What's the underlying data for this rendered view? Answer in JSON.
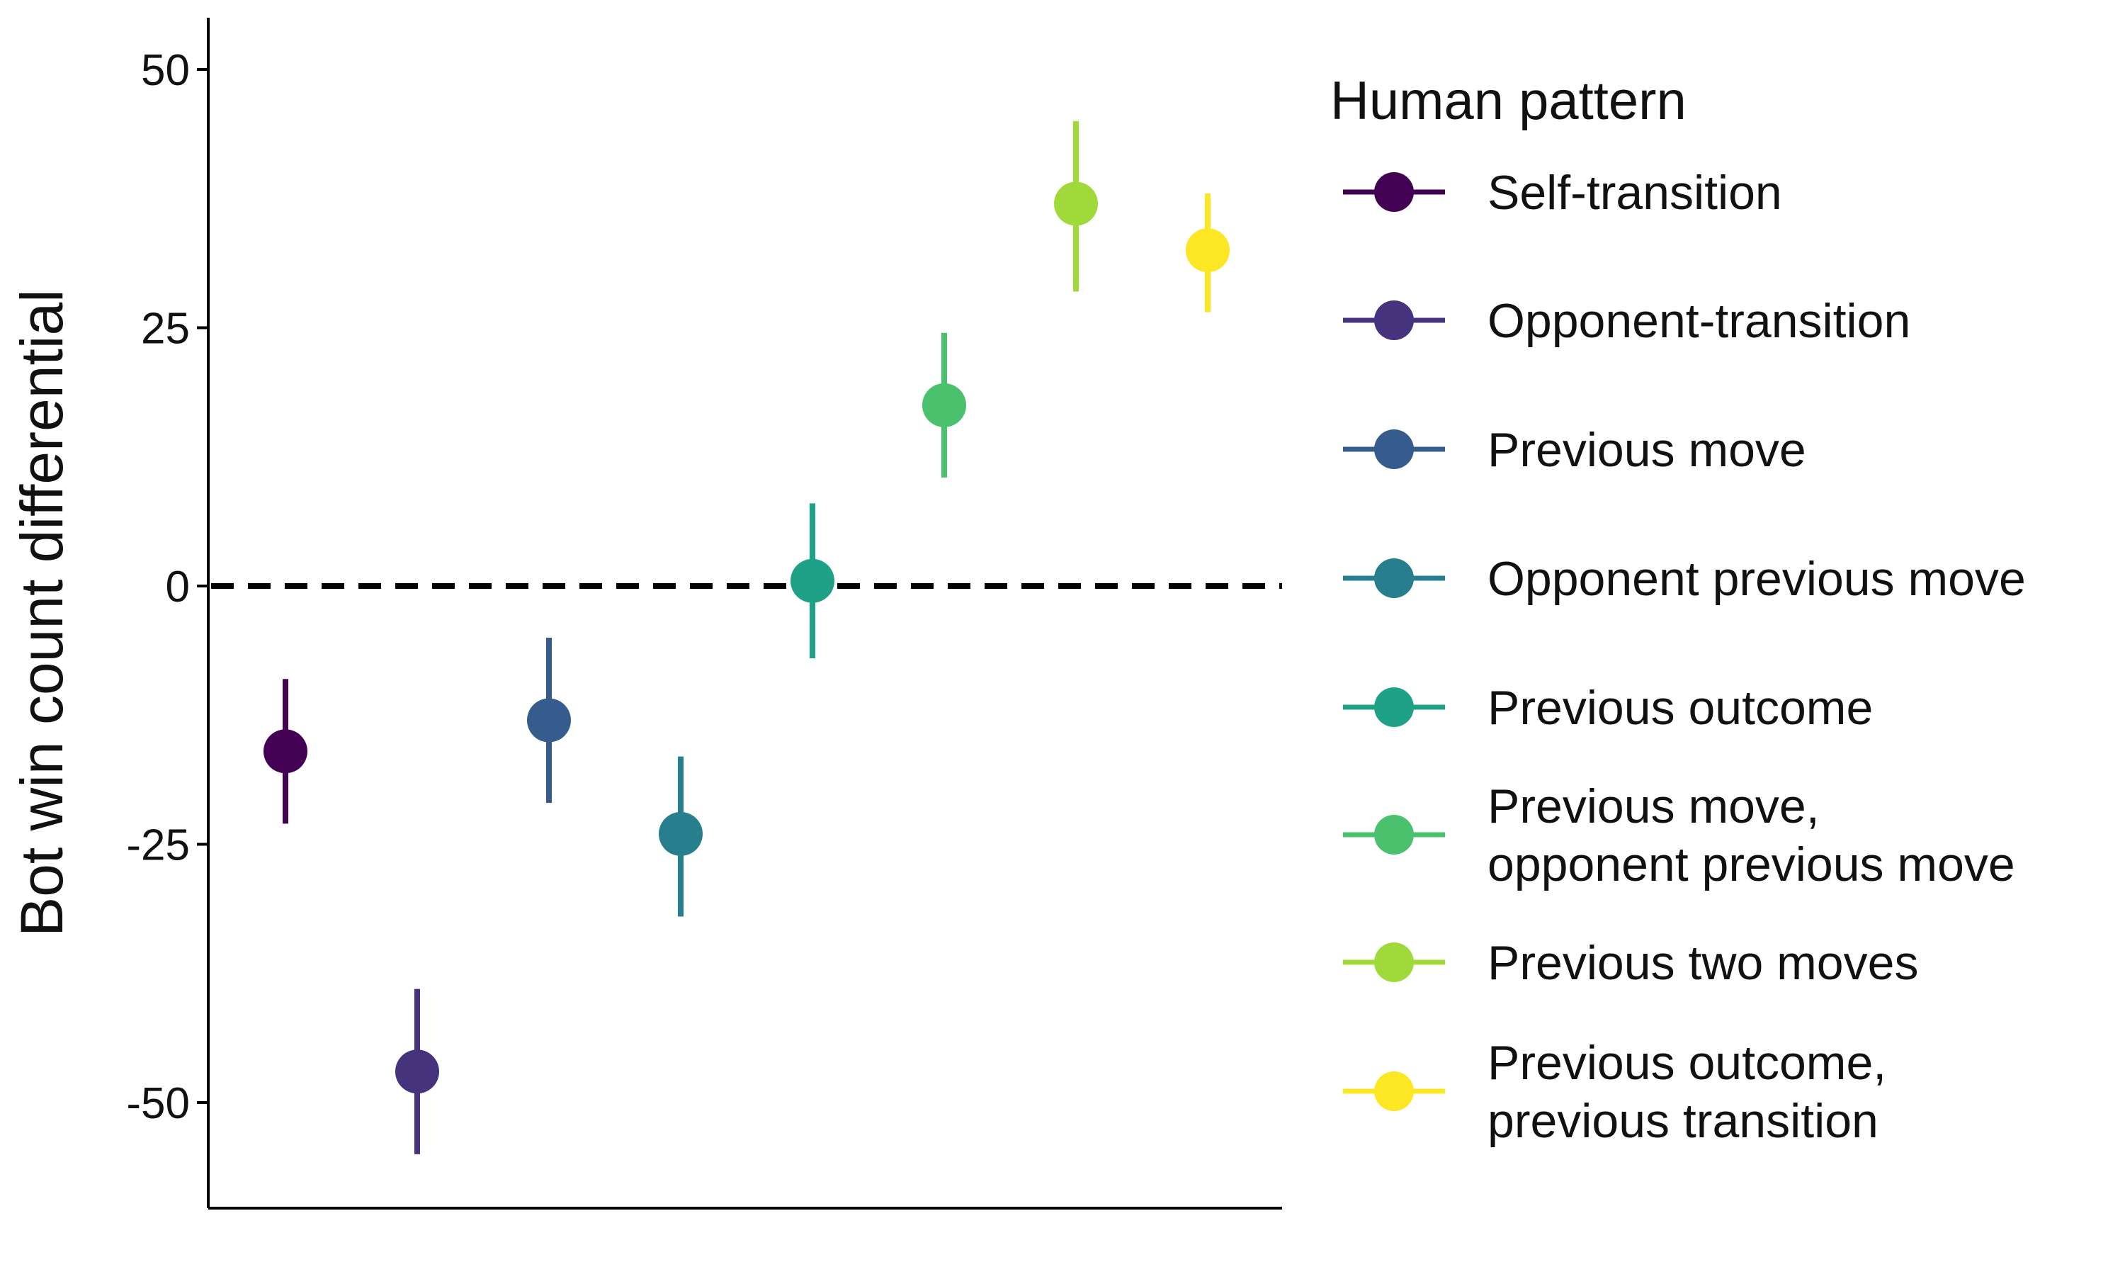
{
  "chart_data": {
    "type": "scatter",
    "title": "",
    "xlabel": "",
    "ylabel": "Bot win count differential",
    "ylim": [
      -60,
      55
    ],
    "yticks": [
      50,
      25,
      0,
      -25,
      -50
    ],
    "ytick_labels": [
      "50",
      "25",
      "0",
      "-25",
      "-50"
    ],
    "reference_line": {
      "y": 0,
      "style": "dashed",
      "color": "#000000"
    },
    "grid": false,
    "legend": {
      "title": "Human pattern",
      "position": "right"
    },
    "series": [
      {
        "name": "Self-transition",
        "label_lines": [
          "Self-transition"
        ],
        "color": "#440154",
        "x": 1,
        "y": -16,
        "ymin": -23,
        "ymax": -9
      },
      {
        "name": "Opponent-transition",
        "label_lines": [
          "Opponent-transition"
        ],
        "color": "#46337E",
        "x": 2,
        "y": -47,
        "ymin": -55,
        "ymax": -39
      },
      {
        "name": "Previous move",
        "label_lines": [
          "Previous move"
        ],
        "color": "#365C8D",
        "x": 3,
        "y": -13,
        "ymin": -21,
        "ymax": -5
      },
      {
        "name": "Opponent previous move",
        "label_lines": [
          "Opponent previous move"
        ],
        "color": "#277F8E",
        "x": 4,
        "y": -24,
        "ymin": -32,
        "ymax": -16.5
      },
      {
        "name": "Previous outcome",
        "label_lines": [
          "Previous outcome"
        ],
        "color": "#1FA187",
        "x": 5,
        "y": 0.5,
        "ymin": -7,
        "ymax": 8
      },
      {
        "name": "Previous move, opponent previous move",
        "label_lines": [
          "Previous move,",
          "opponent previous move"
        ],
        "color": "#4AC16D",
        "x": 6,
        "y": 17.5,
        "ymin": 10.5,
        "ymax": 24.5
      },
      {
        "name": "Previous two moves",
        "label_lines": [
          "Previous two moves"
        ],
        "color": "#9FDA3A",
        "x": 7,
        "y": 37,
        "ymin": 28.5,
        "ymax": 45
      },
      {
        "name": "Previous outcome, previous transition",
        "label_lines": [
          "Previous outcome,",
          "previous transition"
        ],
        "color": "#FDE725",
        "x": 8,
        "y": 32.5,
        "ymin": 26.5,
        "ymax": 38
      }
    ]
  }
}
